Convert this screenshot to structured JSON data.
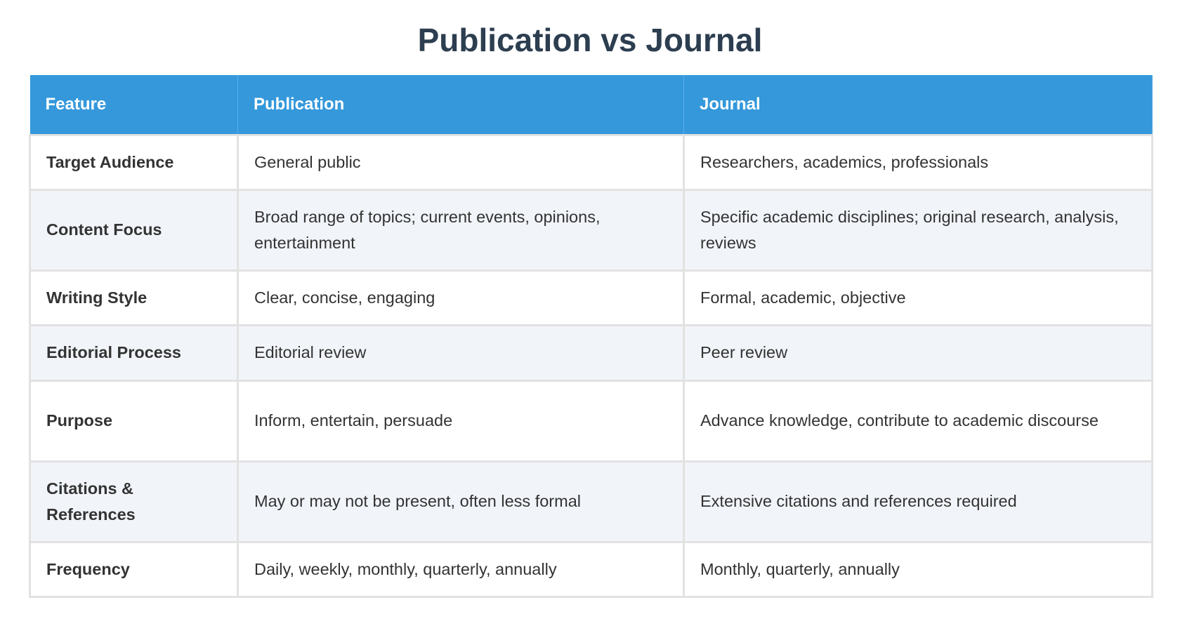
{
  "title": "Publication vs Journal",
  "columns": [
    "Feature",
    "Publication",
    "Journal"
  ],
  "rows": [
    {
      "feature": "Target Audience",
      "publication": "General public",
      "journal": "Researchers, academics, professionals"
    },
    {
      "feature": "Content Focus",
      "publication": "Broad range of topics; current events, opinions, entertainment",
      "journal": "Specific academic disciplines; original research, analysis, reviews"
    },
    {
      "feature": "Writing Style",
      "publication": "Clear, concise, engaging",
      "journal": "Formal, academic, objective"
    },
    {
      "feature": "Editorial Process",
      "publication": "Editorial review",
      "journal": "Peer review"
    },
    {
      "feature": "Purpose",
      "publication": "Inform, entertain, persuade",
      "journal": "Advance knowledge, contribute to academic discourse"
    },
    {
      "feature": "Citations & References",
      "publication": "May or may not be present, often less formal",
      "journal": "Extensive citations and references required"
    },
    {
      "feature": "Frequency",
      "publication": "Daily, weekly, monthly, quarterly, annually",
      "journal": "Monthly, quarterly, annually"
    }
  ],
  "colors": {
    "header": "#3498db",
    "title": "#2c3e50",
    "alt_row": "#f1f4f9"
  }
}
